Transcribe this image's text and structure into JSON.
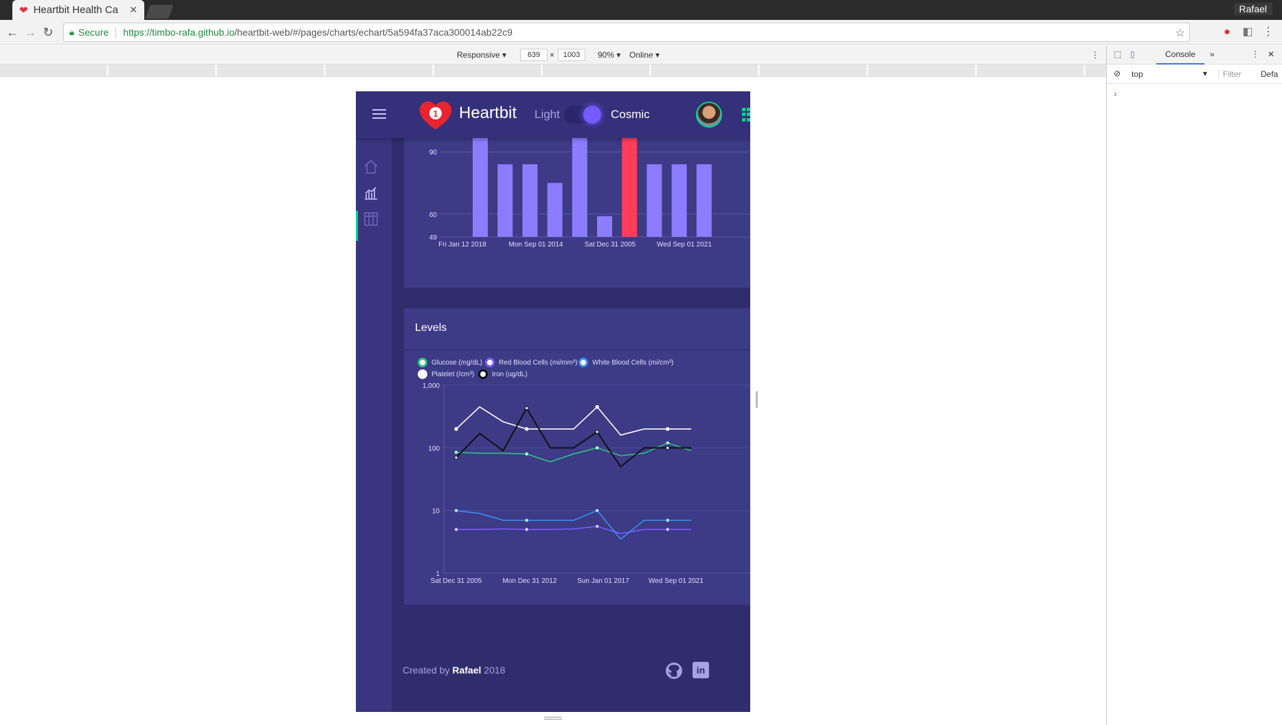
{
  "browser": {
    "tab_title": "Heartbit Health Ca",
    "profile": "Rafael",
    "secure_label": "Secure",
    "url_host": "https://timbo-rafa.github.io",
    "url_path": "/heartbit-web/#/pages/charts/echart/5a594fa37aca300014ab22c9"
  },
  "device_toolbar": {
    "mode": "Responsive",
    "width": "639",
    "times": "×",
    "height": "1003",
    "zoom": "90%",
    "network": "Online"
  },
  "devtools": {
    "tab": "Console",
    "context": "top",
    "filter_placeholder": "Filter",
    "levels": "Defa",
    "prompt": "›"
  },
  "app": {
    "brand": "Heartbit",
    "heart_badge": "1",
    "theme_light": "Light",
    "theme_cosmic": "Cosmic",
    "colors": {
      "accent": "#7659ff",
      "success": "#00d68f",
      "danger": "#ff386a",
      "bg": "#2f2d6b",
      "card": "#3d3a86"
    },
    "sidebar_icons": [
      "home-icon",
      "bar-chart-icon",
      "table-icon"
    ],
    "footer": {
      "prefix": "Created by",
      "author": "Rafael",
      "year": "2018"
    }
  },
  "chart_data": [
    {
      "type": "bar",
      "title": "",
      "x_tick_labels": [
        "Fri Jan 12 2018",
        "Mon Sep 01 2014",
        "Sat Dec 31 2005",
        "Wed Sep 01 2021"
      ],
      "y_tick_labels": [
        "49",
        "60",
        "90"
      ],
      "ylim": [
        49,
        100
      ],
      "values": [
        100,
        84,
        84,
        75,
        100,
        59,
        100,
        84,
        84,
        84
      ],
      "highlight_index": 6,
      "bar_color": "#8c7cff",
      "highlight_color": "#ff3d5a"
    },
    {
      "type": "line",
      "title": "Levels",
      "yscale": "log",
      "ylim": [
        1,
        1000
      ],
      "y_tick_labels": [
        "1,000",
        "100",
        "10",
        "1"
      ],
      "x_tick_labels": [
        "Sat Dec 31 2005",
        "Mon Dec 31 2012",
        "Sun Jan 01 2017",
        "Wed Sep 01 2021"
      ],
      "series": [
        {
          "name": "Glucose (mg/dL)",
          "color": "#2ec27e",
          "values": [
            85,
            82,
            82,
            80,
            60,
            80,
            100,
            75,
            82,
            120,
            90
          ]
        },
        {
          "name": "Red Blood Cells (mi/mm³)",
          "color": "#7b5cff",
          "values": [
            5,
            5,
            5.1,
            5,
            5,
            5.1,
            5.6,
            4.3,
            5,
            5,
            5
          ]
        },
        {
          "name": "White Blood Cells (mi/cm³)",
          "color": "#3b8ef0",
          "values": [
            10,
            9,
            7,
            7,
            7,
            7,
            10,
            3.5,
            7,
            7,
            7
          ]
        },
        {
          "name": "Platelet (/cm³)",
          "color": "#ffffff",
          "values": [
            200,
            450,
            260,
            200,
            200,
            200,
            450,
            160,
            200,
            200,
            200
          ]
        },
        {
          "name": "Iron (ug/dL)",
          "color": "#111111",
          "values": [
            70,
            170,
            90,
            430,
            100,
            100,
            180,
            50,
            100,
            100,
            100
          ]
        }
      ]
    }
  ]
}
